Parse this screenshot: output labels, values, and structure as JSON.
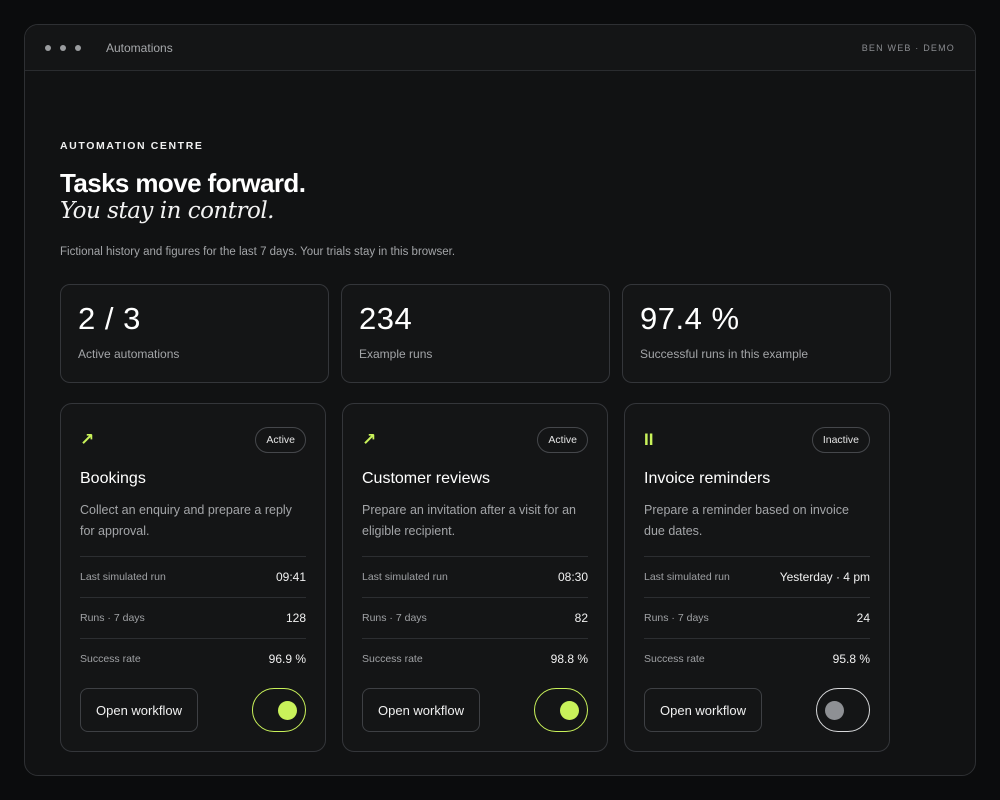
{
  "window": {
    "title": "Automations",
    "right_label": "BEN WEB · DEMO"
  },
  "hero": {
    "eyebrow": "AUTOMATION CENTRE",
    "headline": "Tasks move forward.",
    "subhead": "You stay in control.",
    "intro": "Fictional history and figures for the last 7 days. Your trials stay in this browser."
  },
  "stats": [
    {
      "value": "2 / 3",
      "label": "Active automations"
    },
    {
      "value": "234",
      "label": "Example runs"
    },
    {
      "value": "97.4 %",
      "label": "Successful runs in this example"
    }
  ],
  "row_labels": {
    "last_run": "Last simulated run",
    "runs": "Runs · 7 days",
    "success": "Success rate"
  },
  "cards": [
    {
      "icon": "arrow-up-right-icon",
      "icon_glyph": "↗",
      "status": "Active",
      "title": "Bookings",
      "description": "Collect an enquiry and prepare a reply for approval.",
      "last_run": "09:41",
      "runs": "128",
      "success": "96.9 %",
      "button": "Open workflow",
      "enabled": true
    },
    {
      "icon": "arrow-up-right-icon",
      "icon_glyph": "↗",
      "status": "Active",
      "title": "Customer reviews",
      "description": "Prepare an invitation after a visit for an eligible recipient.",
      "last_run": "08:30",
      "runs": "82",
      "success": "98.8 %",
      "button": "Open workflow",
      "enabled": true
    },
    {
      "icon": "pause-icon",
      "icon_glyph": "II",
      "status": "Inactive",
      "title": "Invoice reminders",
      "description": "Prepare a reminder based on invoice due dates.",
      "last_run": "Yesterday · 4 pm",
      "runs": "24",
      "success": "95.8 %",
      "button": "Open workflow",
      "enabled": false
    }
  ],
  "colors": {
    "accent": "#c9f25a",
    "background": "#0b0c0d",
    "panel": "#141516"
  }
}
